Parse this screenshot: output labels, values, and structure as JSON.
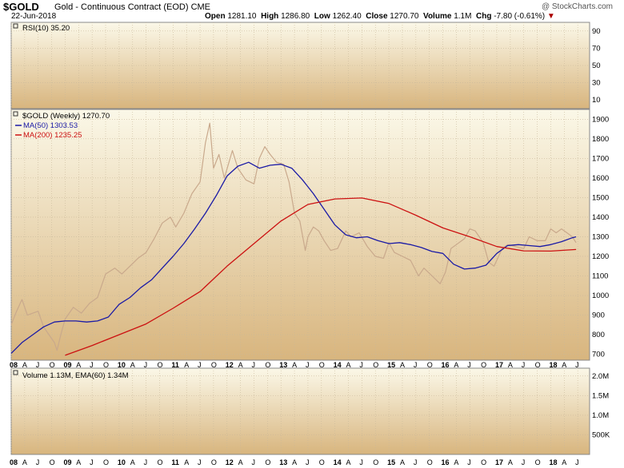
{
  "header": {
    "symbol": "$GOLD",
    "description": "Gold - Continuous Contract (EOD)",
    "exchange": "CME",
    "date": "22-Jun-2018",
    "open_label": "Open",
    "open": "1281.10",
    "high_label": "High",
    "high": "1286.80",
    "low_label": "Low",
    "low": "1262.40",
    "close_label": "Close",
    "close": "1270.70",
    "volume_label": "Volume",
    "volume": "1.1M",
    "chg_label": "Chg",
    "chg": "-7.80 (-0.61%)",
    "watermark": "@ StockCharts.com"
  },
  "colors": {
    "price_bar": "#c9a98c",
    "ma50": "#1a1aa6",
    "ma200": "#cc1111",
    "panel_top": "#fbf8e8",
    "panel_bottom": "#d8b57e"
  },
  "chart_data": [
    {
      "type": "line",
      "panel": "rsi",
      "legend": [
        "RSI(10) 35.20"
      ],
      "y_ticks": [
        "90",
        "70",
        "50",
        "30",
        "10"
      ],
      "ylim": [
        0,
        100
      ]
    },
    {
      "type": "line",
      "panel": "price",
      "legend": [
        "$GOLD (Weekly) 1270.70",
        "MA(50) 1303.53",
        "MA(200) 1235.25"
      ],
      "y_ticks": [
        "1900",
        "1800",
        "1700",
        "1600",
        "1500",
        "1400",
        "1300",
        "1200",
        "1100",
        "1000",
        "900",
        "800",
        "700"
      ],
      "ylim": [
        670,
        1950
      ],
      "x_range": [
        2008.0,
        2018.72
      ],
      "series": [
        {
          "name": "$GOLD (Weekly)",
          "color": "#c9a98c",
          "x": [
            2008.0,
            2008.1,
            2008.2,
            2008.3,
            2008.5,
            2008.6,
            2008.7,
            2008.8,
            2008.85,
            2008.92,
            2009.0,
            2009.15,
            2009.3,
            2009.45,
            2009.6,
            2009.75,
            2009.92,
            2010.05,
            2010.2,
            2010.35,
            2010.5,
            2010.65,
            2010.8,
            2010.95,
            2011.05,
            2011.2,
            2011.35,
            2011.5,
            2011.6,
            2011.68,
            2011.75,
            2011.85,
            2011.95,
            2012.1,
            2012.2,
            2012.35,
            2012.5,
            2012.6,
            2012.7,
            2012.8,
            2012.92,
            2013.05,
            2013.15,
            2013.25,
            2013.35,
            2013.45,
            2013.5,
            2013.6,
            2013.7,
            2013.8,
            2013.92,
            2014.05,
            2014.2,
            2014.3,
            2014.45,
            2014.6,
            2014.75,
            2014.9,
            2015.0,
            2015.1,
            2015.25,
            2015.4,
            2015.55,
            2015.65,
            2015.8,
            2015.95,
            2016.05,
            2016.15,
            2016.25,
            2016.4,
            2016.5,
            2016.6,
            2016.75,
            2016.85,
            2016.95,
            2017.1,
            2017.2,
            2017.35,
            2017.5,
            2017.6,
            2017.75,
            2017.9,
            2018.0,
            2018.1,
            2018.2,
            2018.3,
            2018.4,
            2018.47
          ],
          "y": [
            850,
            920,
            980,
            900,
            920,
            840,
            800,
            760,
            720,
            800,
            880,
            940,
            910,
            960,
            990,
            1110,
            1140,
            1110,
            1150,
            1190,
            1220,
            1290,
            1370,
            1400,
            1350,
            1420,
            1520,
            1580,
            1780,
            1880,
            1650,
            1720,
            1600,
            1740,
            1650,
            1590,
            1570,
            1700,
            1760,
            1720,
            1680,
            1670,
            1580,
            1420,
            1380,
            1230,
            1300,
            1350,
            1330,
            1280,
            1230,
            1240,
            1330,
            1300,
            1320,
            1250,
            1200,
            1190,
            1270,
            1220,
            1200,
            1180,
            1100,
            1140,
            1100,
            1060,
            1120,
            1240,
            1260,
            1290,
            1340,
            1330,
            1270,
            1170,
            1150,
            1240,
            1260,
            1250,
            1240,
            1300,
            1280,
            1280,
            1340,
            1320,
            1340,
            1320,
            1300,
            1270
          ]
        },
        {
          "name": "MA(50)",
          "color": "#1a1aa6",
          "x": [
            2008.0,
            2008.2,
            2008.4,
            2008.6,
            2008.8,
            2009.0,
            2009.2,
            2009.4,
            2009.6,
            2009.8,
            2010.0,
            2010.2,
            2010.4,
            2010.6,
            2010.8,
            2011.0,
            2011.2,
            2011.4,
            2011.6,
            2011.8,
            2012.0,
            2012.2,
            2012.4,
            2012.6,
            2012.8,
            2013.0,
            2013.2,
            2013.4,
            2013.6,
            2013.8,
            2014.0,
            2014.2,
            2014.4,
            2014.6,
            2014.8,
            2015.0,
            2015.2,
            2015.4,
            2015.6,
            2015.8,
            2016.0,
            2016.2,
            2016.4,
            2016.6,
            2016.8,
            2017.0,
            2017.2,
            2017.4,
            2017.6,
            2017.8,
            2018.0,
            2018.2,
            2018.4,
            2018.47
          ],
          "y": [
            705,
            760,
            800,
            840,
            865,
            870,
            870,
            865,
            870,
            890,
            955,
            990,
            1040,
            1080,
            1140,
            1200,
            1265,
            1340,
            1420,
            1510,
            1610,
            1660,
            1680,
            1650,
            1665,
            1670,
            1650,
            1590,
            1520,
            1440,
            1360,
            1310,
            1295,
            1300,
            1280,
            1265,
            1270,
            1260,
            1245,
            1225,
            1215,
            1160,
            1135,
            1140,
            1155,
            1215,
            1255,
            1260,
            1255,
            1250,
            1260,
            1275,
            1295,
            1300
          ]
        },
        {
          "name": "MA(200)",
          "color": "#cc1111",
          "x": [
            2009.0,
            2009.5,
            2010.0,
            2010.5,
            2011.0,
            2011.5,
            2012.0,
            2012.5,
            2013.0,
            2013.5,
            2014.0,
            2014.5,
            2015.0,
            2015.5,
            2016.0,
            2016.5,
            2017.0,
            2017.5,
            2018.0,
            2018.47
          ],
          "y": [
            695,
            745,
            800,
            855,
            935,
            1020,
            1150,
            1265,
            1380,
            1465,
            1493,
            1498,
            1470,
            1410,
            1345,
            1300,
            1250,
            1228,
            1227,
            1235
          ]
        }
      ]
    },
    {
      "type": "bar",
      "panel": "volume",
      "legend": [
        "Volume 1.13M, EMA(60) 1.34M"
      ],
      "y_ticks": [
        "2.0M",
        "1.5M",
        "1.0M",
        "500K"
      ],
      "ylim": [
        0,
        2200000
      ]
    }
  ],
  "x_axis": {
    "year_labels": [
      "08",
      "09",
      "10",
      "11",
      "12",
      "13",
      "14",
      "15",
      "16",
      "17",
      "18"
    ],
    "month_letters": [
      "A",
      "J",
      "O"
    ],
    "tail_letters": [
      "A",
      "J"
    ]
  }
}
